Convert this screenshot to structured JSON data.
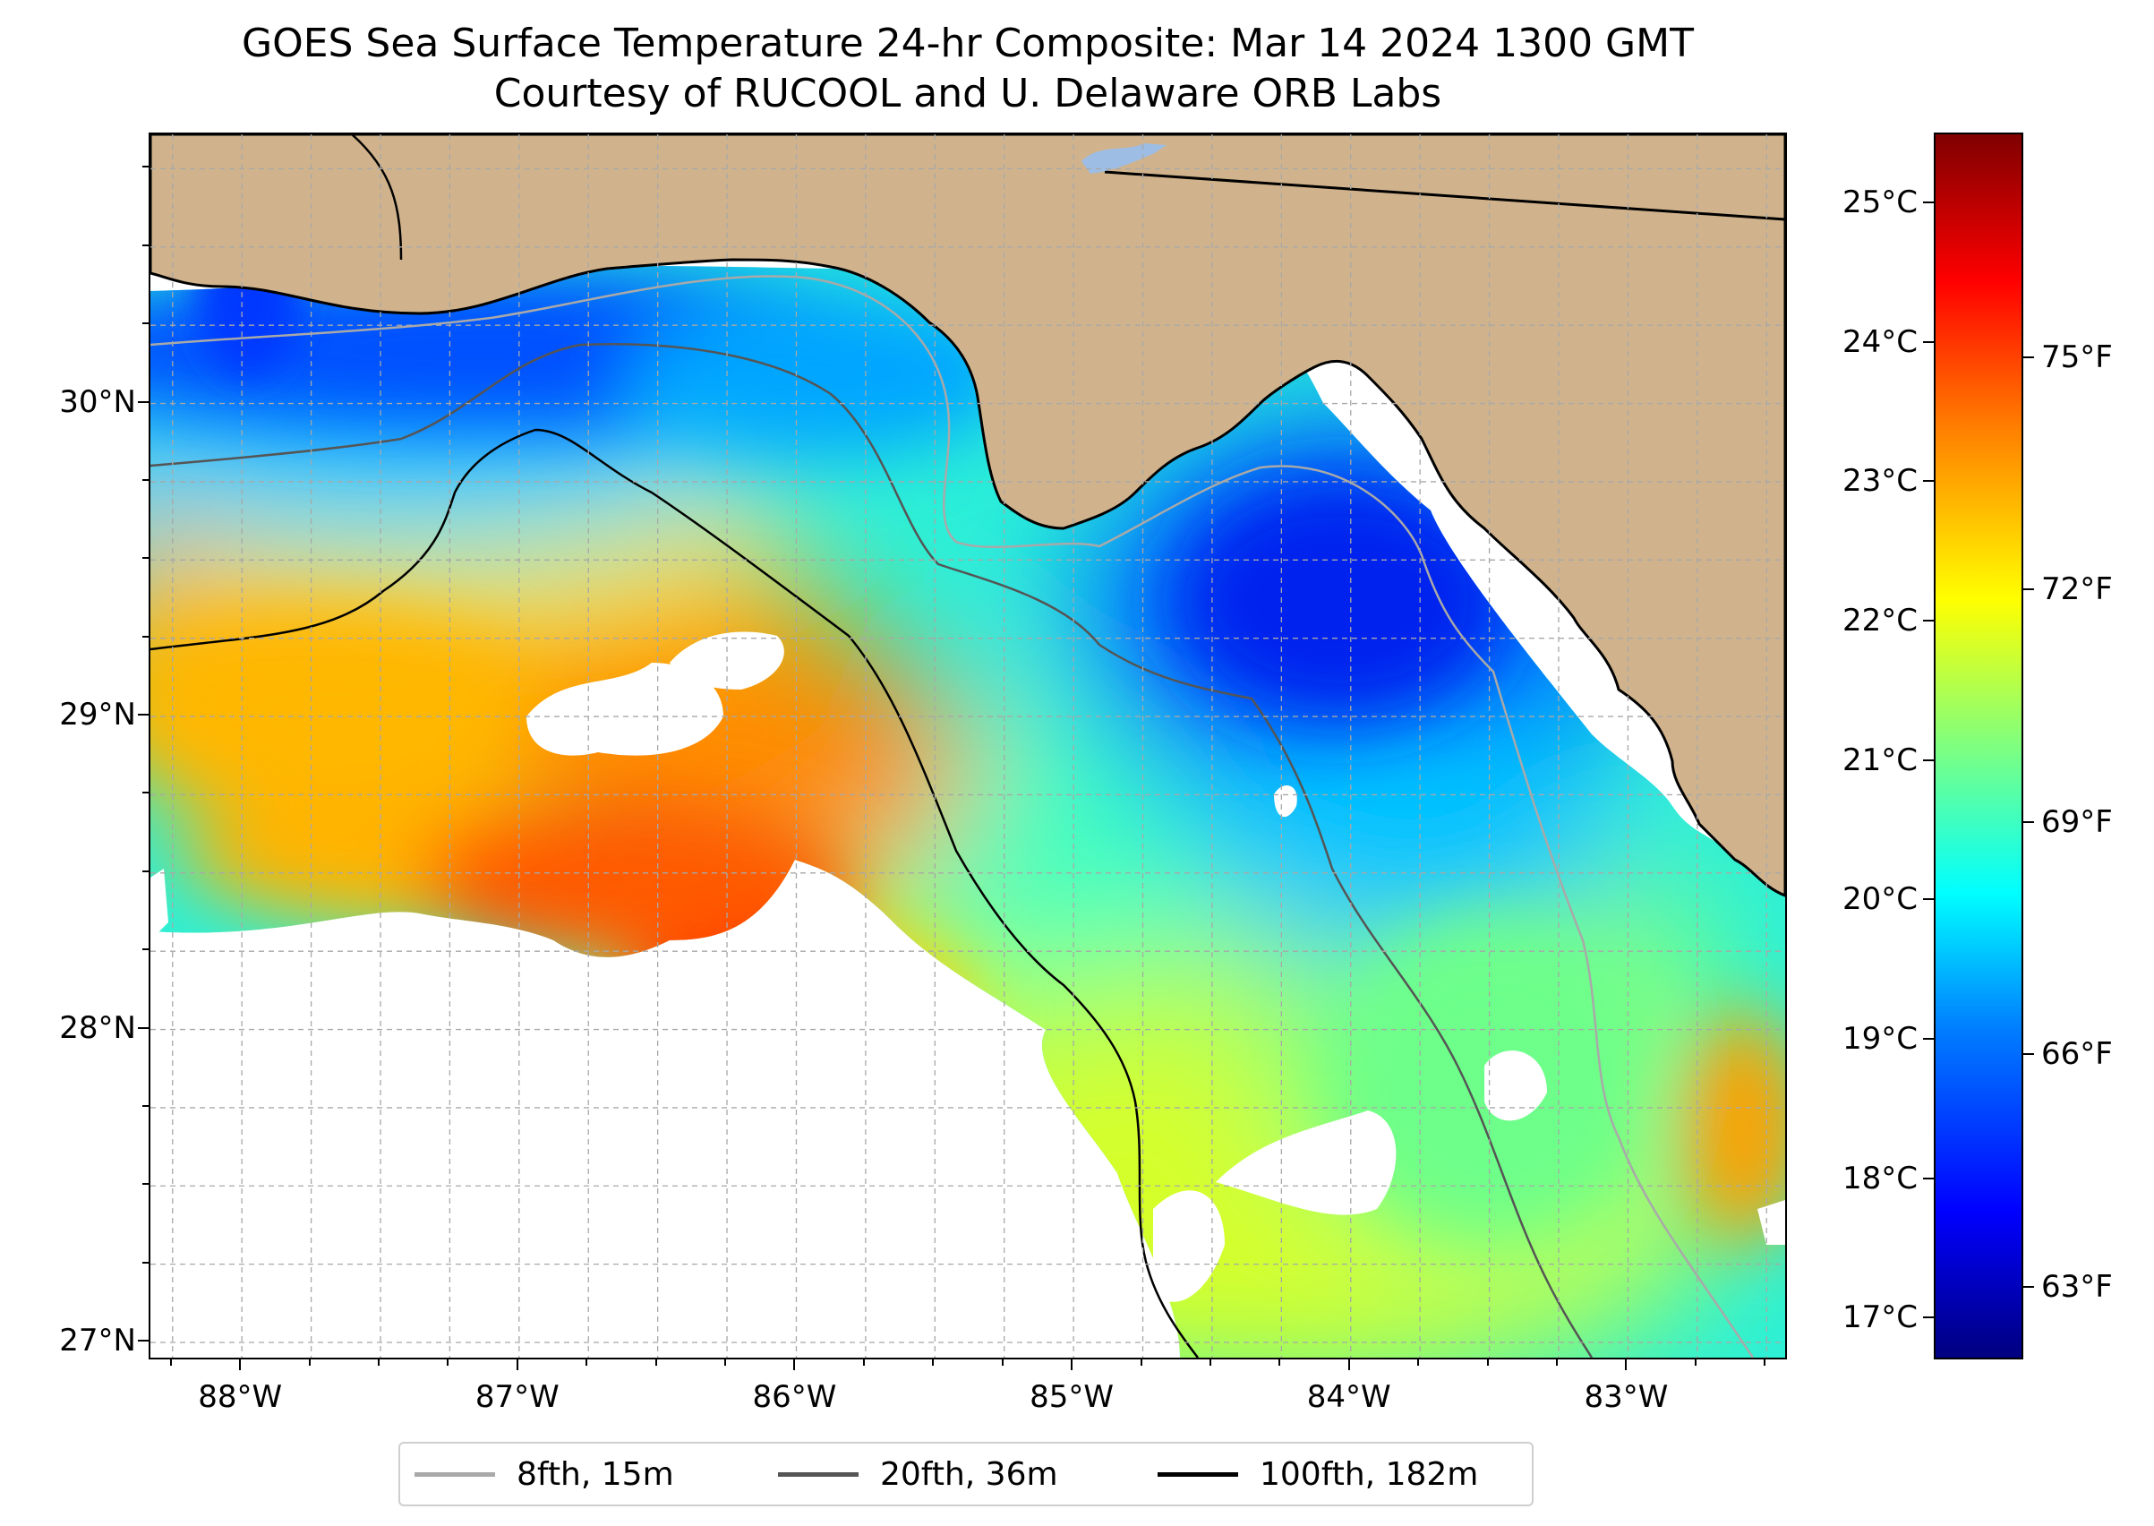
{
  "title": {
    "line1": "GOES Sea Surface Temperature 24-hr Composite: Mar 14 2024 1300 GMT",
    "line2": "Courtesy of RUCOOL and U. Delaware ORB Labs"
  },
  "map": {
    "extent": {
      "lon_min": -88.33,
      "lon_max": -82.42,
      "lat_min": 26.94,
      "lat_max": 30.86
    },
    "land_color": "#d0b38c",
    "no_data_color": "#ffffff",
    "gridlines": true,
    "lon_ticks": [
      {
        "value": -88,
        "label": "88°W"
      },
      {
        "value": -87,
        "label": "87°W"
      },
      {
        "value": -86,
        "label": "86°W"
      },
      {
        "value": -85,
        "label": "85°W"
      },
      {
        "value": -84,
        "label": "84°W"
      },
      {
        "value": -83,
        "label": "83°W"
      }
    ],
    "lat_ticks": [
      {
        "value": 30,
        "label": "30°N"
      },
      {
        "value": 29,
        "label": "29°N"
      },
      {
        "value": 28,
        "label": "28°N"
      },
      {
        "value": 27,
        "label": "27°N"
      }
    ]
  },
  "colorbar": {
    "range_c": [
      16.7,
      25.5
    ],
    "colormap": "jet",
    "celsius_ticks": [
      {
        "value": 25,
        "label": "25°C"
      },
      {
        "value": 24,
        "label": "24°C"
      },
      {
        "value": 23,
        "label": "23°C"
      },
      {
        "value": 22,
        "label": "22°C"
      },
      {
        "value": 21,
        "label": "21°C"
      },
      {
        "value": 20,
        "label": "20°C"
      },
      {
        "value": 19,
        "label": "19°C"
      },
      {
        "value": 18,
        "label": "18°C"
      },
      {
        "value": 17,
        "label": "17°C"
      }
    ],
    "fahrenheit_ticks": [
      {
        "value": 75,
        "label": "75°F"
      },
      {
        "value": 72,
        "label": "72°F"
      },
      {
        "value": 69,
        "label": "69°F"
      },
      {
        "value": 66,
        "label": "66°F"
      },
      {
        "value": 63,
        "label": "63°F"
      }
    ]
  },
  "legend": [
    {
      "label": "8fth, 15m",
      "color": "#a9a9a9"
    },
    {
      "label": "20fth, 36m",
      "color": "#555555"
    },
    {
      "label": "100fth, 182m",
      "color": "#000000"
    }
  ]
}
